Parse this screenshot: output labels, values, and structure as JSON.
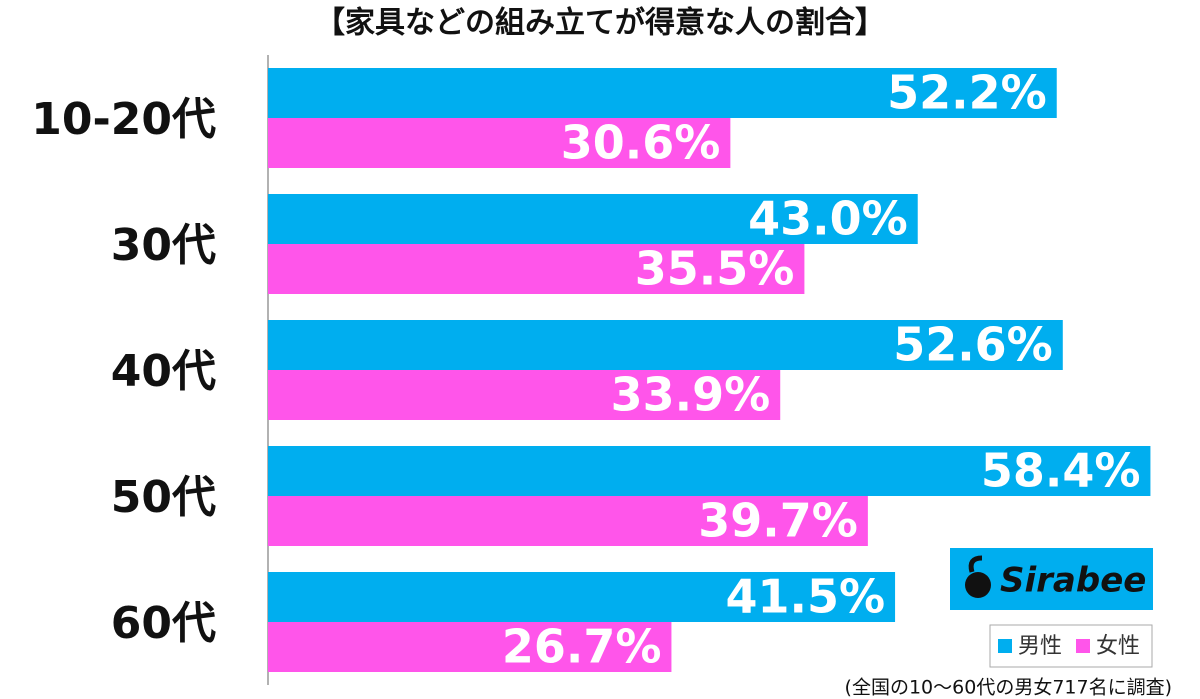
{
  "chart_data": {
    "type": "bar",
    "orientation": "horizontal",
    "title": "【家具などの組み立てが得意な人の割合】",
    "categories": [
      "10-20代",
      "30代",
      "40代",
      "50代",
      "60代"
    ],
    "series": [
      {
        "name": "男性",
        "color": "#00aeef",
        "values": [
          52.2,
          43.0,
          52.6,
          58.4,
          41.5
        ],
        "value_labels": [
          "52.2%",
          "43.0%",
          "52.6%",
          "58.4%",
          "41.5%"
        ]
      },
      {
        "name": "女性",
        "color": "#ff55ea",
        "values": [
          30.6,
          35.5,
          33.9,
          39.7,
          26.7
        ],
        "value_labels": [
          "30.6%",
          "35.5%",
          "33.9%",
          "39.7%",
          "26.7%"
        ]
      }
    ],
    "xlim": [
      0,
      60
    ],
    "legend": "lower right",
    "logo": "Sirabee",
    "note": "(全国の10～60代の男女717名に調査)"
  }
}
